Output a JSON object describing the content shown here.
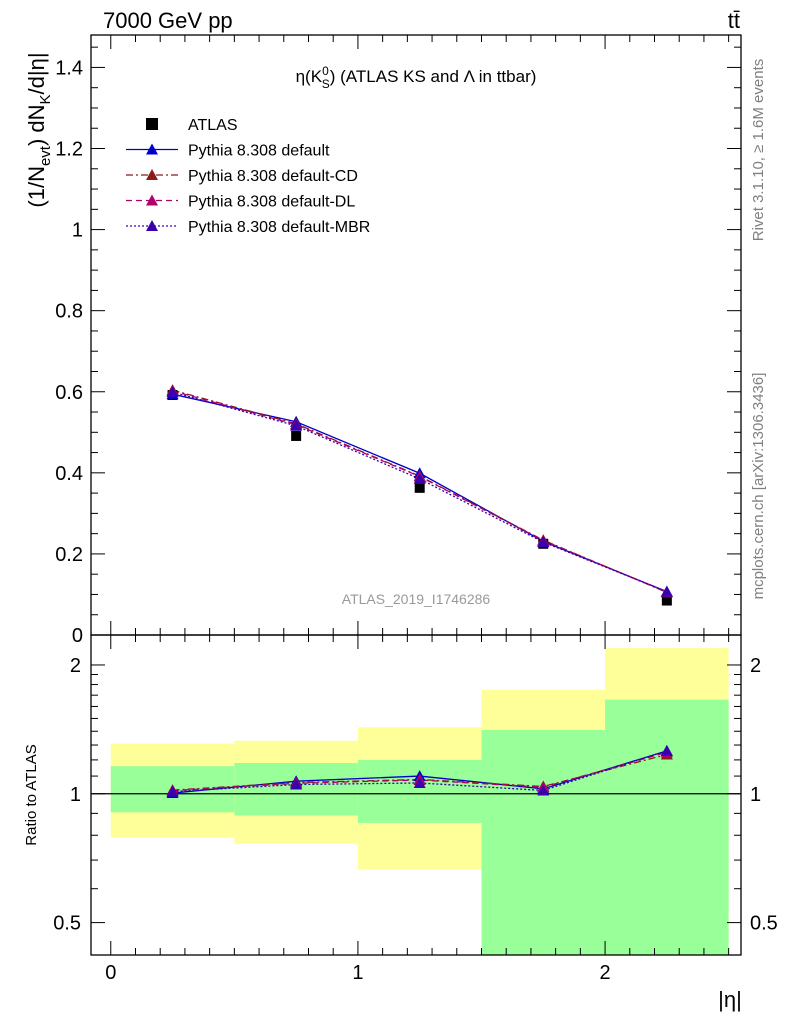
{
  "header": {
    "left": "7000 GeV pp",
    "right": "tt̄"
  },
  "side_texts": {
    "rivet": "Rivet 3.1.10, ≥ 1.6M events",
    "mcplots": "mcplots.cern.ch [arXiv:1306.3436]"
  },
  "chart_data": [
    {
      "type": "scatter",
      "title": "η(K_S^0) (ATLAS KS and Λ in ttbar)",
      "ylabel": "(1/N_evt) dN_K/d|η|",
      "xlabel": "|η|",
      "watermark": "ATLAS_2019_I1746286",
      "xlim": [
        -0.08,
        2.55
      ],
      "ylim": [
        0,
        1.48
      ],
      "yticks": [
        0,
        0.2,
        0.4,
        0.6,
        0.8,
        1,
        1.2,
        1.4
      ],
      "ytick_labels": [
        "0",
        "0.2",
        "0.4",
        "0.6",
        "0.8",
        "1",
        "1.2",
        "1.4"
      ],
      "x": [
        0.25,
        0.75,
        1.25,
        1.75,
        2.25
      ],
      "legend_position": "top-left",
      "series": [
        {
          "name": "ATLAS",
          "values": [
            0.592,
            0.491,
            0.363,
            0.225,
            0.085
          ],
          "color": "#000000",
          "marker": "square",
          "line": "none"
        },
        {
          "name": "Pythia 8.308 default",
          "values": [
            0.594,
            0.526,
            0.399,
            0.231,
            0.107
          ],
          "color": "#0000cc",
          "marker": "triangle",
          "line": "solid"
        },
        {
          "name": "Pythia 8.308 default-CD",
          "values": [
            0.604,
            0.521,
            0.392,
            0.234,
            0.105
          ],
          "color": "#8b1a1a",
          "marker": "triangle",
          "line": "dashdot"
        },
        {
          "name": "Pythia 8.308 default-DL",
          "values": [
            0.602,
            0.519,
            0.391,
            0.233,
            0.106
          ],
          "color": "#b0006a",
          "marker": "triangle",
          "line": "dashed"
        },
        {
          "name": "Pythia 8.308 default-MBR",
          "values": [
            0.599,
            0.516,
            0.385,
            0.229,
            0.107
          ],
          "color": "#3a00b0",
          "marker": "triangle",
          "line": "dotted"
        }
      ]
    },
    {
      "type": "scatter",
      "ylabel": "Ratio to ATLAS",
      "xlabel": "|η|",
      "xlim": [
        -0.08,
        2.55
      ],
      "ylim": [
        0.42,
        2.35
      ],
      "log_y": true,
      "yticks": [
        0.5,
        1,
        2
      ],
      "ytick_labels": [
        "0.5",
        "1",
        "2"
      ],
      "xticks": [
        0,
        1,
        2
      ],
      "xtick_labels": [
        "0",
        "1",
        "2"
      ],
      "bins": [
        [
          0,
          0.5
        ],
        [
          0.5,
          1.0
        ],
        [
          1.0,
          1.5
        ],
        [
          1.5,
          2.0
        ],
        [
          2.0,
          2.5
        ]
      ],
      "band_inner": [
        [
          0.905,
          1.16
        ],
        [
          0.89,
          1.18
        ],
        [
          0.855,
          1.2
        ],
        [
          0.42,
          1.41
        ],
        [
          0.42,
          1.66
        ]
      ],
      "band_outer": [
        [
          0.79,
          1.31
        ],
        [
          0.765,
          1.33
        ],
        [
          0.665,
          1.43
        ],
        [
          0.68,
          1.75
        ],
        [
          0.42,
          2.19
        ]
      ],
      "band_colors": {
        "inner": "#99ff99",
        "outer": "#ffff99"
      },
      "x": [
        0.25,
        0.75,
        1.25,
        1.75,
        2.25
      ],
      "series": [
        {
          "name": "Pythia 8.308 default",
          "values": [
            1.004,
            1.07,
            1.1,
            1.027,
            1.26
          ],
          "color": "#0000cc",
          "line": "solid"
        },
        {
          "name": "Pythia 8.308 default-CD",
          "values": [
            1.02,
            1.062,
            1.08,
            1.04,
            1.235
          ],
          "color": "#8b1a1a",
          "line": "dashdot"
        },
        {
          "name": "Pythia 8.308 default-DL",
          "values": [
            1.017,
            1.058,
            1.077,
            1.036,
            1.25
          ],
          "color": "#b0006a",
          "line": "dashed"
        },
        {
          "name": "Pythia 8.308 default-MBR",
          "values": [
            1.012,
            1.051,
            1.06,
            1.018,
            1.26
          ],
          "color": "#3a00b0",
          "line": "dotted"
        }
      ]
    }
  ]
}
